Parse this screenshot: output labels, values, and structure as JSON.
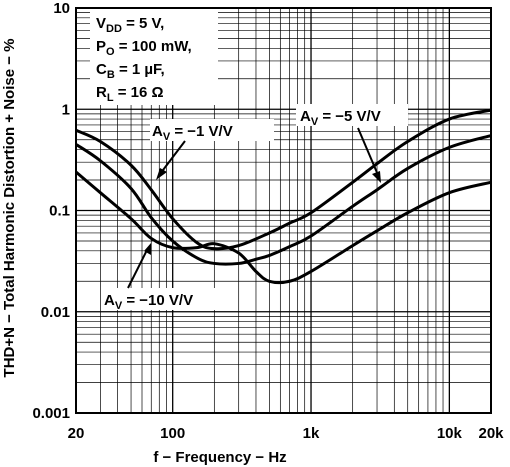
{
  "chart_data": {
    "type": "line",
    "xlabel": "f − Frequency − Hz",
    "ylabel": "THD+N − Total Harmonic Distortion + Noise − %",
    "x_scale": "log",
    "y_scale": "log",
    "xlim": [
      20,
      20000
    ],
    "ylim": [
      0.001,
      10
    ],
    "grid": true,
    "x_ticks": [
      {
        "value": 20,
        "label": "20"
      },
      {
        "value": 100,
        "label": "100"
      },
      {
        "value": 1000,
        "label": "1k"
      },
      {
        "value": 10000,
        "label": "10k"
      },
      {
        "value": 20000,
        "label": "20k"
      }
    ],
    "y_ticks": [
      {
        "value": 10,
        "label": "10"
      },
      {
        "value": 1,
        "label": "1"
      },
      {
        "value": 0.1,
        "label": "0.1"
      },
      {
        "value": 0.01,
        "label": "0.01"
      },
      {
        "value": 0.001,
        "label": "0.001"
      }
    ],
    "conditions": {
      "vdd": {
        "main": "V",
        "sub": "DD",
        "rest": " = 5 V,"
      },
      "po": {
        "main": "P",
        "sub": "O",
        "rest": " = 100 mW,"
      },
      "cb": {
        "main": "C",
        "sub": "B",
        "rest": " = 1 µF,"
      },
      "rl": {
        "main": "R",
        "sub": "L",
        "rest": " = 16 Ω"
      }
    },
    "series": [
      {
        "key": "av1",
        "label": {
          "main": "A",
          "sub": "V",
          "rest": " = −1 V/V"
        },
        "x": [
          20,
          30,
          50,
          70,
          100,
          150,
          200,
          300,
          500,
          700,
          1000,
          2000,
          3000,
          5000,
          10000,
          20000
        ],
        "y": [
          0.62,
          0.48,
          0.28,
          0.16,
          0.083,
          0.048,
          0.042,
          0.045,
          0.06,
          0.075,
          0.095,
          0.19,
          0.29,
          0.48,
          0.8,
          0.98
        ]
      },
      {
        "key": "av5",
        "label": {
          "main": "A",
          "sub": "V",
          "rest": " = −5 V/V"
        },
        "x": [
          20,
          30,
          50,
          70,
          100,
          150,
          200,
          300,
          400,
          500,
          700,
          1000,
          2000,
          3000,
          5000,
          10000,
          20000
        ],
        "y": [
          0.45,
          0.31,
          0.165,
          0.085,
          0.05,
          0.034,
          0.03,
          0.03,
          0.033,
          0.036,
          0.044,
          0.056,
          0.11,
          0.16,
          0.26,
          0.42,
          0.55
        ]
      },
      {
        "key": "av10",
        "label": {
          "main": "A",
          "sub": "V",
          "rest": " = −10 V/V"
        },
        "x": [
          20,
          30,
          50,
          70,
          100,
          150,
          200,
          300,
          400,
          500,
          700,
          1000,
          2000,
          3000,
          5000,
          10000,
          20000
        ],
        "y": [
          0.24,
          0.15,
          0.083,
          0.053,
          0.043,
          0.043,
          0.047,
          0.038,
          0.025,
          0.02,
          0.02,
          0.025,
          0.045,
          0.063,
          0.095,
          0.15,
          0.19
        ]
      }
    ]
  }
}
